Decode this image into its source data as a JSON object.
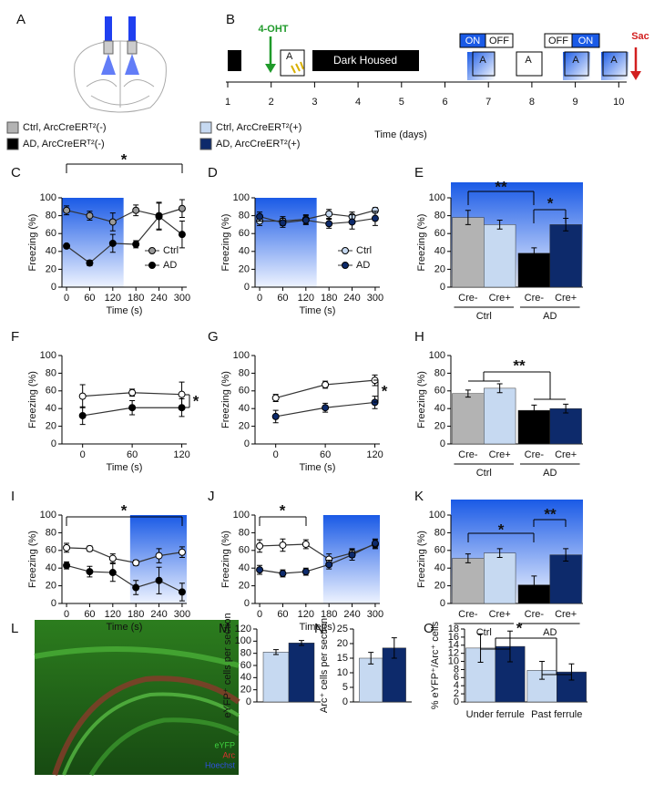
{
  "panels": [
    "A",
    "B",
    "C",
    "D",
    "E",
    "F",
    "G",
    "H",
    "I",
    "J",
    "K",
    "L",
    "M",
    "N",
    "O"
  ],
  "legend": [
    "Ctrl, ArcCreERᵀ²(-)",
    "Ctrl, ArcCreERᵀ²(+)",
    "AD, ArcCreERᵀ²(-)",
    "AD, ArcCreERᵀ²(+)"
  ],
  "legend_colors": [
    "#b3b3b3",
    "#c6d9f1",
    "#000000",
    "#0d2a6b"
  ],
  "timeline": {
    "days": [
      1,
      2,
      3,
      4,
      5,
      6,
      7,
      8,
      9,
      10
    ],
    "xlabel": "Time (days)",
    "drug": "4-OHT",
    "housing": "Dark Housed",
    "light_1": [
      "ON",
      "OFF"
    ],
    "light_2": [
      "OFF",
      "ON"
    ],
    "end": "Sac",
    "contexts": [
      "A",
      "A",
      "A",
      "A",
      "A"
    ]
  },
  "image_labels": [
    "eYFP",
    "Arc",
    "Hoechst"
  ],
  "chart_data": [
    {
      "type": "line",
      "xlabel": "Time (s)",
      "ylabel": "Freezing (%)",
      "x": [
        0,
        60,
        120,
        180,
        240,
        300
      ],
      "xlim": [
        -12,
        312
      ],
      "xticks": [
        0,
        60,
        120,
        180,
        240,
        300
      ],
      "ylim": [
        0,
        100
      ],
      "yticks": [
        0,
        20,
        40,
        60,
        80,
        100
      ],
      "shade": [
        -12,
        148
      ],
      "legend": "lower right",
      "annotations": [
        "*"
      ],
      "series": [
        {
          "name": "Ctrl",
          "color": "#9a9a9a",
          "values": [
            86,
            80,
            73,
            86,
            80,
            88
          ],
          "errors": [
            5,
            5,
            10,
            6,
            15,
            10
          ]
        },
        {
          "name": "AD",
          "color": "#000000",
          "values": [
            46,
            27,
            49,
            48,
            79,
            59
          ],
          "errors": [
            2,
            3,
            10,
            4,
            15,
            15
          ]
        }
      ]
    },
    {
      "type": "line",
      "xlabel": "Time (s)",
      "ylabel": "Freezing (%)",
      "x": [
        0,
        60,
        120,
        180,
        240,
        300
      ],
      "xlim": [
        -12,
        312
      ],
      "xticks": [
        0,
        60,
        120,
        180,
        240,
        300
      ],
      "ylim": [
        0,
        100
      ],
      "yticks": [
        0,
        20,
        40,
        60,
        80,
        100
      ],
      "shade": [
        -12,
        148
      ],
      "legend": "lower right",
      "annotations": [],
      "series": [
        {
          "name": "Ctrl",
          "color": "#c6d9f1",
          "values": [
            74,
            74,
            76,
            82,
            79,
            86
          ],
          "errors": [
            5,
            5,
            5,
            5,
            5,
            3
          ]
        },
        {
          "name": "AD",
          "color": "#0d2a6b",
          "values": [
            79,
            72,
            75,
            71,
            73,
            77
          ],
          "errors": [
            5,
            5,
            5,
            5,
            8,
            8
          ]
        }
      ]
    },
    {
      "type": "bar",
      "ylabel": "Freezing (%)",
      "categories": [
        "Cre-",
        "Cre+",
        "Cre-",
        "Cre+"
      ],
      "groups": [
        "Ctrl",
        "AD"
      ],
      "values": [
        78,
        70,
        38,
        70
      ],
      "errors": [
        8,
        5,
        6,
        7
      ],
      "colors": [
        "#b3b3b3",
        "#c6d9f1",
        "#000000",
        "#0d2a6b"
      ],
      "ylim": [
        0,
        100
      ],
      "yticks": [
        0,
        20,
        40,
        60,
        80,
        100
      ],
      "shade": true,
      "annotations": [
        "**",
        "*"
      ]
    },
    {
      "type": "line",
      "xlabel": "Time (s)",
      "ylabel": "Freezing (%)",
      "x": [
        0,
        60,
        120
      ],
      "xlim": [
        -25,
        126
      ],
      "xticks": [
        0,
        60,
        120
      ],
      "ylim": [
        0,
        100
      ],
      "yticks": [
        0,
        20,
        40,
        60,
        80,
        100
      ],
      "annotations": [
        "*"
      ],
      "series": [
        {
          "name": "Ctrl",
          "color": "#ffffff",
          "values": [
            54,
            58,
            56
          ],
          "errors": [
            13,
            4,
            14
          ]
        },
        {
          "name": "AD",
          "color": "#000000",
          "values": [
            32,
            41,
            41
          ],
          "errors": [
            10,
            8,
            10
          ]
        }
      ]
    },
    {
      "type": "line",
      "xlabel": "Time (s)",
      "ylabel": "Freezing (%)",
      "x": [
        0,
        60,
        120
      ],
      "xlim": [
        -25,
        126
      ],
      "xticks": [
        0,
        60,
        120
      ],
      "ylim": [
        0,
        100
      ],
      "yticks": [
        0,
        20,
        40,
        60,
        80,
        100
      ],
      "annotations": [
        "*"
      ],
      "series": [
        {
          "name": "Ctrl",
          "color": "#ffffff",
          "values": [
            52,
            67,
            72
          ],
          "errors": [
            4,
            4,
            6
          ]
        },
        {
          "name": "AD",
          "color": "#0d2a6b",
          "values": [
            31,
            41,
            47
          ],
          "errors": [
            7,
            5,
            7
          ]
        }
      ]
    },
    {
      "type": "bar",
      "ylabel": "Freezing (%)",
      "categories": [
        "Cre-",
        "Cre+",
        "Cre-",
        "Cre+"
      ],
      "groups": [
        "Ctrl",
        "AD"
      ],
      "values": [
        57,
        63,
        38,
        40
      ],
      "errors": [
        4,
        5,
        6,
        5
      ],
      "colors": [
        "#b3b3b3",
        "#c6d9f1",
        "#000000",
        "#0d2a6b"
      ],
      "ylim": [
        0,
        100
      ],
      "yticks": [
        0,
        20,
        40,
        60,
        80,
        100
      ],
      "annotations": [
        "**"
      ]
    },
    {
      "type": "line",
      "xlabel": "Time (s)",
      "ylabel": "Freezing (%)",
      "x": [
        0,
        60,
        120,
        180,
        240,
        300
      ],
      "xlim": [
        -12,
        312
      ],
      "xticks": [
        0,
        60,
        120,
        180,
        240,
        300
      ],
      "ylim": [
        0,
        100
      ],
      "yticks": [
        0,
        20,
        40,
        60,
        80,
        100
      ],
      "shade": [
        165,
        312
      ],
      "annotations": [
        "*"
      ],
      "series": [
        {
          "name": "Ctrl",
          "color": "#ffffff",
          "values": [
            63,
            62,
            51,
            46,
            54,
            58
          ],
          "errors": [
            5,
            3,
            5,
            3,
            8,
            6
          ]
        },
        {
          "name": "AD",
          "color": "#000000",
          "values": [
            43,
            36,
            35,
            18,
            26,
            13
          ],
          "errors": [
            4,
            6,
            10,
            8,
            15,
            10
          ]
        }
      ]
    },
    {
      "type": "line",
      "xlabel": "Time (s)",
      "ylabel": "Freezing (%)",
      "x": [
        0,
        60,
        120,
        180,
        240,
        300
      ],
      "xlim": [
        -12,
        312
      ],
      "xticks": [
        0,
        60,
        120,
        180,
        240,
        300
      ],
      "ylim": [
        0,
        100
      ],
      "yticks": [
        0,
        20,
        40,
        60,
        80,
        100
      ],
      "shade": [
        165,
        312
      ],
      "annotations": [
        "*"
      ],
      "series": [
        {
          "name": "Ctrl",
          "color": "#ffffff",
          "values": [
            65,
            66,
            67,
            50,
            57,
            67
          ],
          "errors": [
            7,
            7,
            5,
            6,
            5,
            5
          ]
        },
        {
          "name": "AD",
          "color": "#0d2a6b",
          "values": [
            38,
            34,
            36,
            44,
            55,
            68
          ],
          "errors": [
            5,
            4,
            4,
            5,
            6,
            5
          ]
        }
      ]
    },
    {
      "type": "bar",
      "ylabel": "Freezing (%)",
      "categories": [
        "Cre-",
        "Cre+",
        "Cre-",
        "Cre+"
      ],
      "groups": [
        "Ctrl",
        "AD"
      ],
      "values": [
        51,
        57,
        21,
        55
      ],
      "errors": [
        5,
        5,
        10,
        7
      ],
      "colors": [
        "#b3b3b3",
        "#c6d9f1",
        "#000000",
        "#0d2a6b"
      ],
      "ylim": [
        0,
        100
      ],
      "yticks": [
        0,
        20,
        40,
        60,
        80,
        100
      ],
      "shade": true,
      "annotations": [
        "*",
        "**"
      ]
    },
    {
      "type": "bar",
      "ylabel": "eYFP⁺ cells per section",
      "categories": [
        null,
        null
      ],
      "values": [
        82,
        97
      ],
      "errors": [
        4,
        4
      ],
      "colors": [
        "#c6d9f1",
        "#0d2a6b"
      ],
      "ylim": [
        0,
        120
      ],
      "yticks": [
        0,
        20,
        40,
        60,
        80,
        100,
        120
      ],
      "annotations": []
    },
    {
      "type": "bar",
      "ylabel": "Arc⁺ cells per section",
      "categories": [
        null,
        null
      ],
      "values": [
        15,
        18.5
      ],
      "errors": [
        2,
        3.5
      ],
      "colors": [
        "#c6d9f1",
        "#0d2a6b"
      ],
      "ylim": [
        0,
        25
      ],
      "yticks": [
        0,
        5,
        10,
        15,
        20,
        25
      ],
      "annotations": []
    },
    {
      "type": "bar",
      "ylabel": "% eYFP⁺/Arc⁺ cells",
      "categories": [
        null,
        null,
        null,
        null
      ],
      "groups": [
        "Under ferrule",
        "Past ferrule"
      ],
      "values": [
        13.3,
        13.7,
        7.8,
        7.4
      ],
      "errors": [
        3.5,
        3.8,
        2.2,
        2
      ],
      "colors": [
        "#c6d9f1",
        "#0d2a6b",
        "#c6d9f1",
        "#0d2a6b"
      ],
      "ylim": [
        0,
        18
      ],
      "yticks": [
        0,
        2,
        4,
        6,
        8,
        10,
        12,
        14,
        16,
        18
      ],
      "annotations": [
        "*"
      ]
    }
  ]
}
